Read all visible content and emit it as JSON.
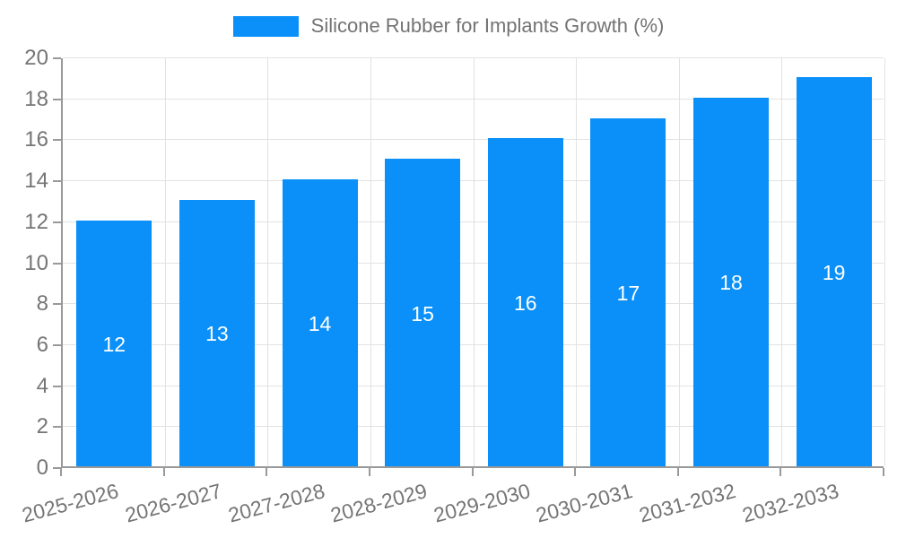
{
  "legend": {
    "label": "Silicone Rubber for Implants Growth (%)"
  },
  "chart_data": {
    "type": "bar",
    "title": "Silicone Rubber for Implants Growth (%)",
    "categories": [
      "2025-2026",
      "2026-2027",
      "2027-2028",
      "2028-2029",
      "2029-2030",
      "2030-2031",
      "2031-2032",
      "2032-2033"
    ],
    "values": [
      12,
      13,
      14,
      15,
      16,
      17,
      18,
      19
    ],
    "xlabel": "",
    "ylabel": "",
    "ylim": [
      0,
      20
    ],
    "ytick_step": 2,
    "grid": true,
    "legend_position": "top-center",
    "colors": {
      "bar": "#0a90f8",
      "value_label": "#ffffff",
      "axis_text": "#757575",
      "legend_text": "#737373",
      "axis_line": "#999999",
      "gridline": "#e2e2e2",
      "background": "#ffffff"
    }
  }
}
